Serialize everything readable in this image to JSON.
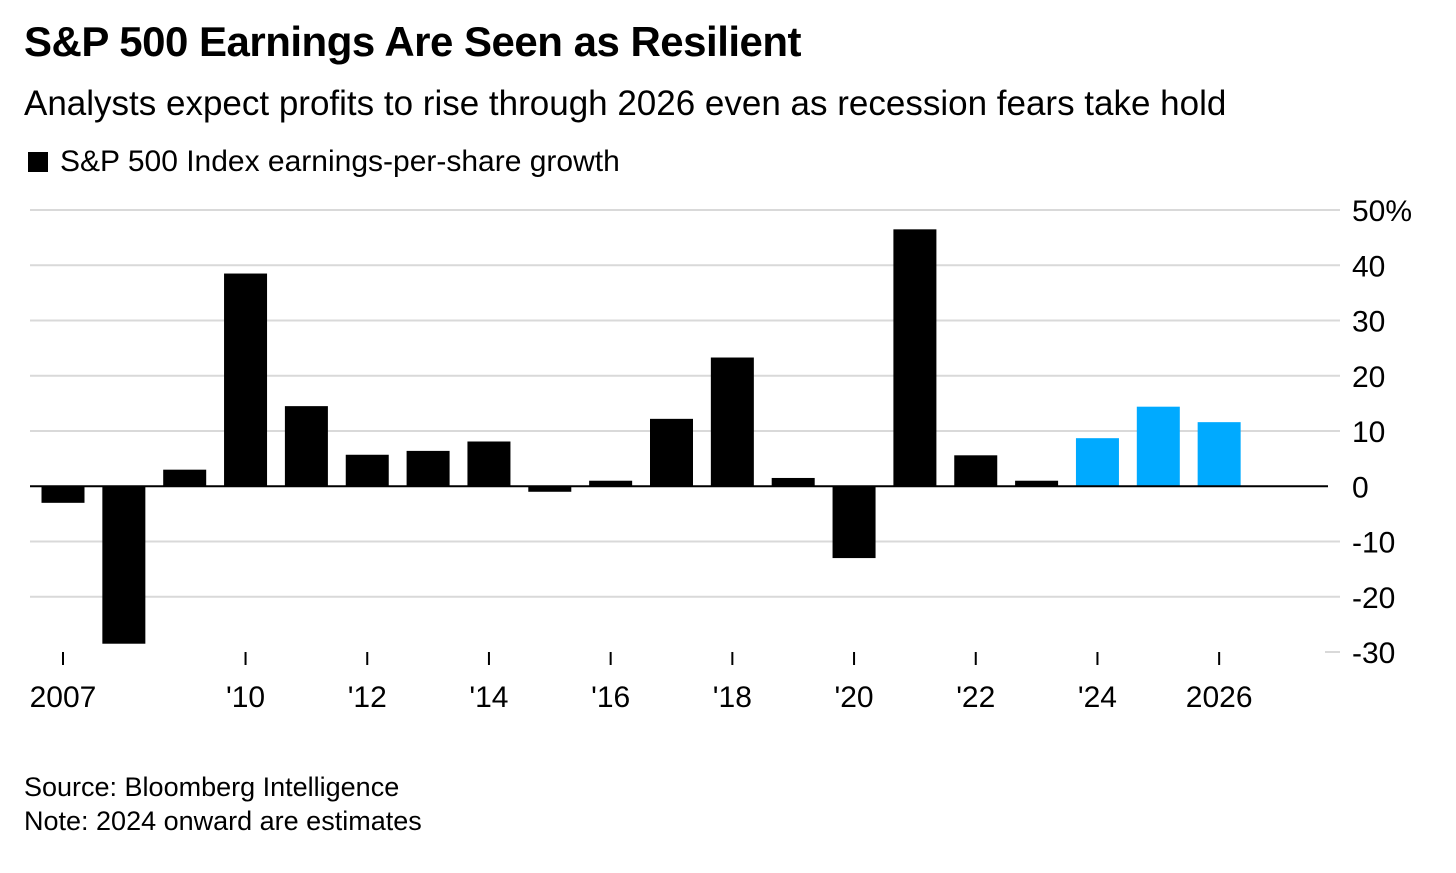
{
  "title": "S&P 500 Earnings Are Seen as Resilient",
  "subtitle": "Analysts expect profits to rise through 2026 even as recession fears take hold",
  "legend": {
    "label": "S&P 500 Index earnings-per-share growth",
    "color": "#000000"
  },
  "source": "Source: Bloomberg Intelligence",
  "note": "Note: 2024 onward are estimates",
  "chart_data": {
    "type": "bar",
    "categories": [
      2007,
      2008,
      2009,
      2010,
      2011,
      2012,
      2013,
      2014,
      2015,
      2016,
      2017,
      2018,
      2019,
      2020,
      2021,
      2022,
      2023,
      2024,
      2025,
      2026
    ],
    "series": [
      {
        "name": "S&P 500 Index earnings-per-share growth",
        "values": [
          -3,
          -28.5,
          3,
          38.5,
          14.5,
          5.7,
          6.4,
          8.1,
          -1,
          1,
          12.2,
          23.3,
          1.5,
          -13,
          46.5,
          5.6,
          1,
          8.7,
          14.4,
          11.6
        ]
      }
    ],
    "estimates_from": 2024,
    "colors": {
      "actual": "#000000",
      "estimate": "#00aaff"
    },
    "ylim": [
      -30,
      50
    ],
    "yticks": [
      50,
      40,
      30,
      20,
      10,
      0,
      -10,
      -20,
      -30
    ],
    "ytick_labels": [
      "50%",
      "40",
      "30",
      "20",
      "10",
      "0",
      "-10",
      "-20",
      "-30"
    ],
    "xticks": [
      2007,
      2010,
      2012,
      2014,
      2016,
      2018,
      2020,
      2022,
      2024,
      2026
    ],
    "xtick_labels": [
      "2007",
      "'10",
      "'12",
      "'14",
      "'16",
      "'18",
      "'20",
      "'22",
      "'24",
      "2026"
    ],
    "y_axis_position": "right",
    "grid": true,
    "legend_position": "top-left"
  }
}
